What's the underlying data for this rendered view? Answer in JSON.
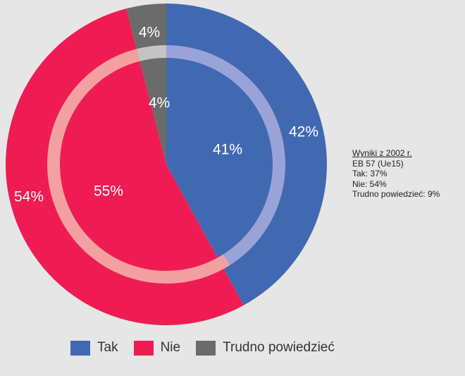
{
  "chart_data": {
    "type": "pie",
    "categories": [
      "Tak",
      "Nie",
      "Trudno powiedzieć"
    ],
    "colors": [
      "#4169b2",
      "#ee1c52",
      "#6b6b6b"
    ],
    "inner_ring_colors": [
      "#9aa3d8",
      "#f4a0a0",
      "#c4c4c4"
    ],
    "series": [
      {
        "values": [
          42,
          54,
          4
        ],
        "labels": [
          "42%",
          "54%",
          "4%"
        ]
      },
      {
        "values": [
          41,
          55,
          4
        ],
        "labels": [
          "41%",
          "55%",
          "4%"
        ]
      }
    ],
    "legend": [
      "Tak",
      "Nie",
      "Trudno powiedzieć"
    ],
    "legend_position": "bottom"
  },
  "side_note": {
    "title": "Wyniki z 2002 r.",
    "line1": "EB 57 (Ue15)",
    "line2": "Tak: 37%",
    "line3": "Nie: 54%",
    "line4": "Trudno powiedzieć: 9%"
  }
}
